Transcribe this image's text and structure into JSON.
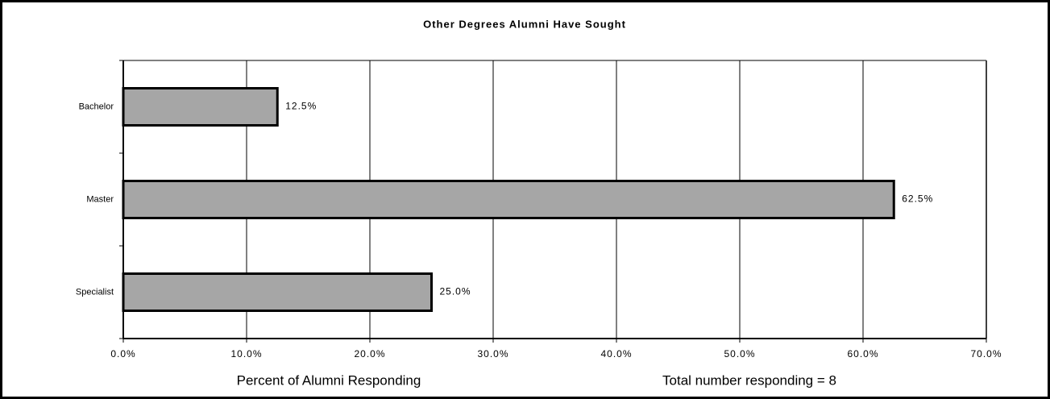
{
  "chart_data": {
    "type": "hbar",
    "title": "Other Degrees Alumni Have Sought",
    "categories": [
      "Bachelor",
      "Master",
      "Specialist"
    ],
    "values": [
      12.5,
      62.5,
      25.0
    ],
    "value_labels": [
      "12.5%",
      "62.5%",
      "25.0%"
    ],
    "color": "#a6a6a6",
    "xlim": [
      0,
      70
    ],
    "xticks": [
      {
        "value": 0,
        "label": "0.0%"
      },
      {
        "value": 10,
        "label": "10.0%"
      },
      {
        "value": 20,
        "label": "20.0%"
      },
      {
        "value": 30,
        "label": "30.0%"
      },
      {
        "value": 40,
        "label": "40.0%"
      },
      {
        "value": 50,
        "label": "50.0%"
      },
      {
        "value": 60,
        "label": "60.0%"
      },
      {
        "value": 70,
        "label": "70.0%"
      }
    ],
    "xlabel": "Percent of Alumni Responding",
    "annotation": "Total number responding = 8",
    "grid": true
  }
}
